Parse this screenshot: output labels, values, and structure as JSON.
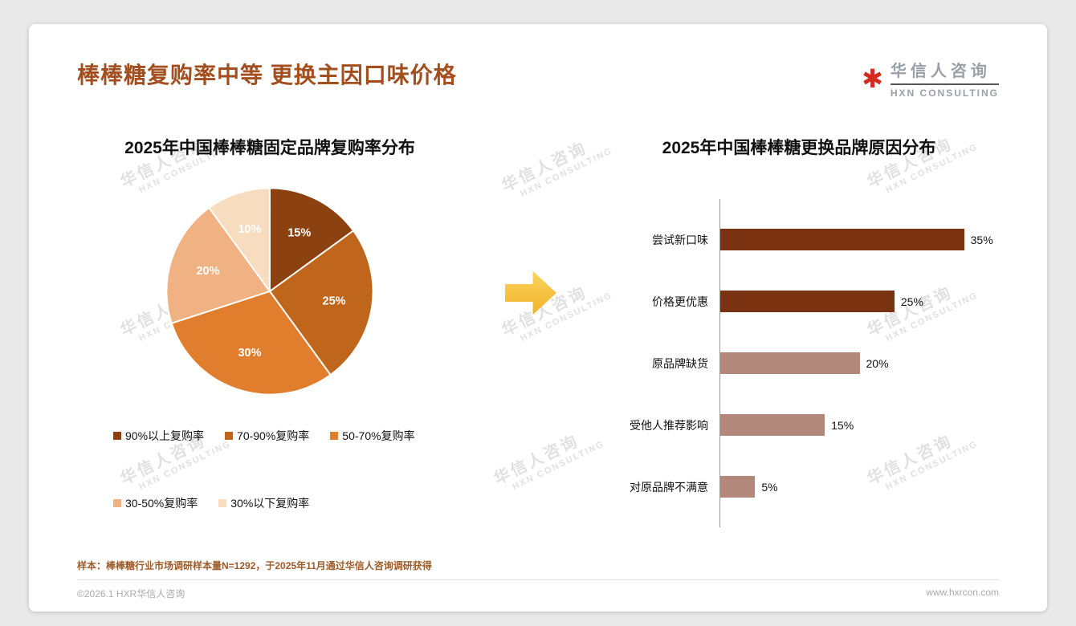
{
  "header": {
    "title": "棒棒糖复购率中等 更换主因口味价格",
    "logo": {
      "name": "华信人咨询",
      "sub": "HXN CONSULTING"
    }
  },
  "watermark": {
    "line1": "华信人咨询",
    "line2": "HXN CONSULTING"
  },
  "colors": {
    "title": "#A34E1F",
    "logo_red": "#D42B1E",
    "arrow": "#F5C13B",
    "bar_dark": "#7A3210",
    "bar_light": "#B1887A"
  },
  "chart_data": [
    {
      "type": "pie",
      "title": "2025年中国棒棒糖固定品牌复购率分布",
      "labels": [
        "90%以上复购率",
        "70-90%复购率",
        "50-70%复购率",
        "30-50%复购率",
        "30%以下复购率"
      ],
      "values": [
        15,
        25,
        30,
        20,
        10
      ],
      "value_labels": [
        "15%",
        "25%",
        "30%",
        "20%",
        "10%"
      ],
      "colors": [
        "#8B4210",
        "#C0651C",
        "#E07E2E",
        "#F0B183",
        "#F8DCC0"
      ],
      "start_angle_deg": -90,
      "direction": "clockwise",
      "legend_position": "bottom"
    },
    {
      "type": "bar",
      "orientation": "horizontal",
      "title": "2025年中国棒棒糖更换品牌原因分布",
      "categories": [
        "尝试新口味",
        "价格更优惠",
        "原品牌缺货",
        "受他人推荐影响",
        "对原品牌不满意"
      ],
      "values": [
        35,
        25,
        20,
        15,
        5
      ],
      "value_labels": [
        "35%",
        "25%",
        "20%",
        "15%",
        "5%"
      ],
      "colors": [
        "#7A3210",
        "#7A3210",
        "#B1887A",
        "#B1887A",
        "#B1887A"
      ],
      "xlim": [
        0,
        40
      ],
      "grid": false,
      "legend_position": "none"
    }
  ],
  "footer": {
    "note": "样本：棒棒糖行业市场调研样本量N=1292，于2025年11月通过华信人咨询调研获得",
    "copyright": "©2026.1 HXR华信人咨询",
    "website": "www.hxrcon.com"
  }
}
